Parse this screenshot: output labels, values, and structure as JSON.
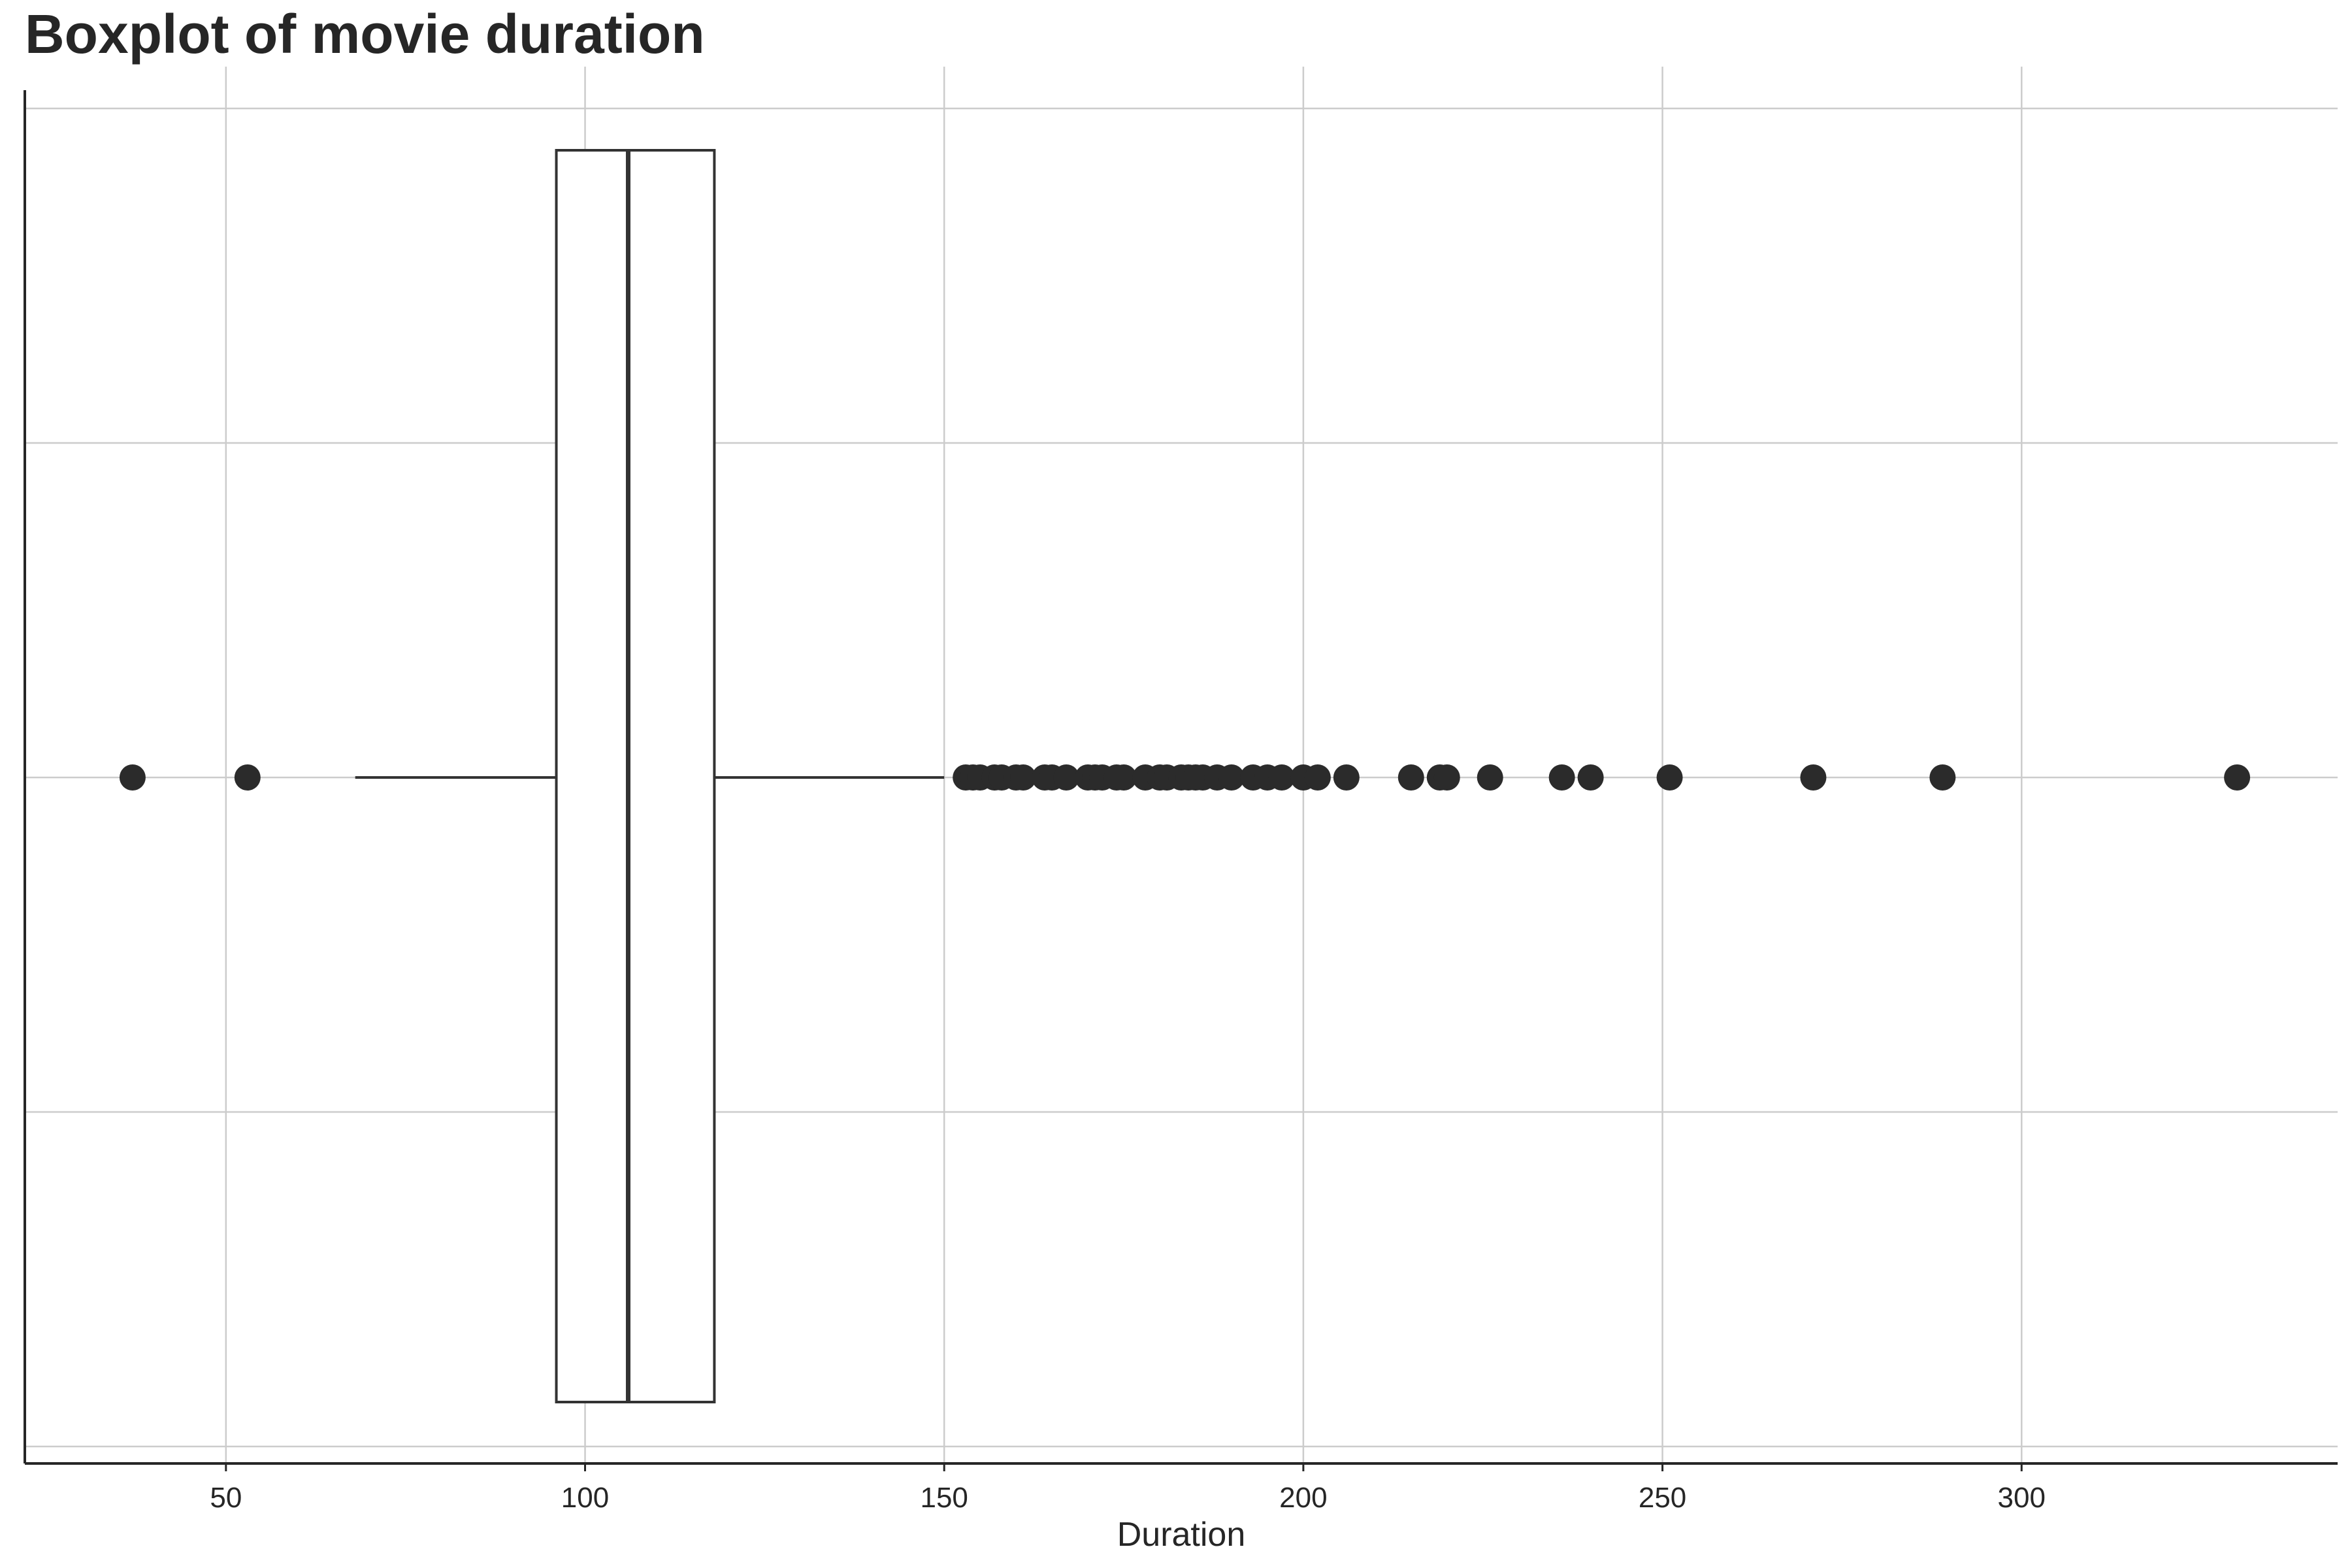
{
  "chart_data": {
    "type": "boxplot",
    "title": "Boxplot of movie duration",
    "xlabel": "Duration",
    "ylabel": "",
    "xlim": [
      22,
      344
    ],
    "xticks": [
      50,
      100,
      150,
      200,
      250,
      300
    ],
    "grid": true,
    "colors": {
      "box_edge": "#333333",
      "box_fill": "#ffffff",
      "grid": "#cccccc",
      "points": "#2b2b2b"
    },
    "box": {
      "whisker_low": 68,
      "q1": 96,
      "median": 106,
      "q3": 118,
      "whisker_high": 150
    },
    "outliers": [
      37,
      53,
      153,
      154,
      155,
      157,
      158,
      160,
      161,
      164,
      165,
      167,
      170,
      171,
      172,
      174,
      175,
      178,
      180,
      181,
      183,
      184,
      185,
      186,
      188,
      190,
      193,
      195,
      197,
      200,
      202,
      206,
      215,
      219,
      220,
      226,
      236,
      240,
      251,
      271,
      289,
      330
    ]
  }
}
